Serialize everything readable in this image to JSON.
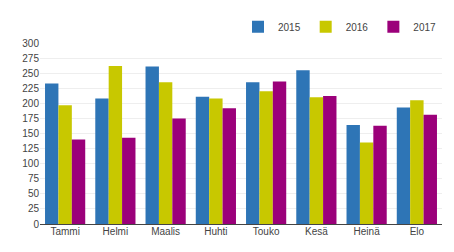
{
  "chart_data": {
    "type": "bar",
    "categories": [
      "Tammi",
      "Helmi",
      "Maalis",
      "Huhti",
      "Touko",
      "Kesä",
      "Heinä",
      "Elo"
    ],
    "series": [
      {
        "name": "2015",
        "color": "#2E75B6",
        "values": [
          233,
          208,
          261,
          211,
          235,
          255,
          164,
          193
        ]
      },
      {
        "name": "2016",
        "color": "#C8C800",
        "values": [
          197,
          262,
          235,
          208,
          220,
          210,
          135,
          205
        ]
      },
      {
        "name": "2017",
        "color": "#9B007A",
        "values": [
          140,
          143,
          175,
          192,
          236,
          212,
          163,
          181
        ]
      }
    ],
    "ylim": [
      0,
      300
    ],
    "yticks": [
      0,
      25,
      50,
      75,
      100,
      125,
      150,
      175,
      200,
      225,
      250,
      275,
      300
    ],
    "grid": true,
    "legend": "upper right"
  }
}
